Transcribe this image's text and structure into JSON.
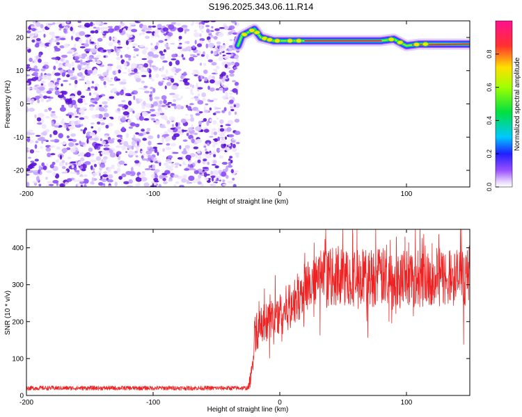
{
  "title": "S196.2025.343.06.11.R14",
  "chart_data": [
    {
      "type": "heatmap",
      "xlabel": "Height of straight line (km)",
      "ylabel": "Frequency (Hz)",
      "xlim": [
        -200,
        150
      ],
      "ylim": [
        -25,
        25
      ],
      "xticks": [
        -200,
        -100,
        0,
        100
      ],
      "yticks": [
        -20,
        -10,
        0,
        10,
        20
      ],
      "colorbar": {
        "label": "Normalized spectral amplitude",
        "range": [
          0,
          1
        ],
        "ticks": [
          0.0,
          0.2,
          0.4,
          0.6,
          0.8
        ]
      },
      "features": {
        "noise_region_x": [
          -200,
          -33
        ],
        "carrier_trace": {
          "x": [
            -33,
            -30,
            -25,
            -20,
            -15,
            -10,
            -5,
            0,
            20,
            50,
            80,
            90,
            100,
            110,
            150
          ],
          "freq": [
            17.5,
            20.5,
            21.5,
            22.5,
            20,
            19.5,
            19,
            19,
            19,
            19,
            19,
            19.5,
            17.5,
            18,
            18
          ]
        },
        "colors": {
          "noise": "#7b2cf0",
          "trace_low": "#3030ff",
          "trace_mid": "#00e040",
          "trace_high": "#ff3030"
        }
      }
    },
    {
      "type": "line",
      "xlabel": "Height of straight line (km)",
      "ylabel": "SNR (10 * v/v)",
      "xlim": [
        -200,
        150
      ],
      "ylim": [
        0,
        450
      ],
      "xticks": [
        -200,
        -100,
        0,
        100
      ],
      "yticks": [
        0,
        100,
        200,
        300,
        400
      ],
      "series": [
        {
          "color": "#ee2222",
          "profile": {
            "x": [
              -200,
              -25,
              -22,
              -20,
              -10,
              0,
              10,
              20,
              30,
              40,
              60,
              80,
              100,
              120,
              150
            ],
            "y": [
              20,
              20,
              60,
              170,
              200,
              220,
              250,
              290,
              320,
              320,
              320,
              320,
              320,
              320,
              320
            ]
          },
          "noise_amplitude": {
            "x": [
              -200,
              -25,
              -20,
              0,
              20,
              40,
              150
            ],
            "y": [
              6,
              6,
              50,
              60,
              70,
              80,
              80
            ]
          }
        }
      ]
    }
  ]
}
